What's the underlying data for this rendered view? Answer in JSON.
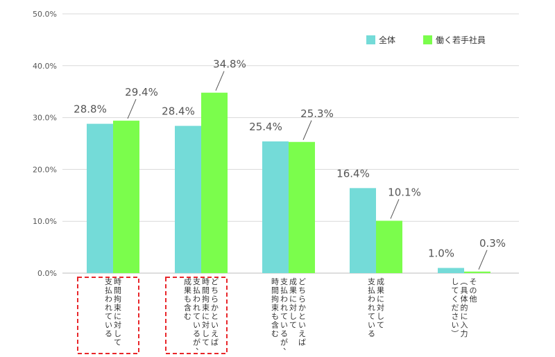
{
  "chart_data": {
    "type": "bar",
    "ylim": [
      0,
      50
    ],
    "yticks": [
      "0.0%",
      "10.0%",
      "20.0%",
      "30.0%",
      "40.0%",
      "50.0%"
    ],
    "grid": true,
    "legend_position": "top-right",
    "categories": [
      [
        "時間拘束に対して",
        "支払われている"
      ],
      [
        "どちらかといえば",
        "時間拘束に対して",
        "支払われているが、",
        "成果も含む"
      ],
      [
        "どちらかといえば",
        "成果に対して",
        "支払われているが、",
        "時間拘束も含む"
      ],
      [
        "成果に対して",
        "支払われている"
      ],
      [
        "その他",
        "（具体的に入力",
        "してください）"
      ]
    ],
    "series": [
      {
        "name": "全体",
        "color": "#74dbd8",
        "values": [
          28.8,
          28.4,
          25.4,
          16.4,
          1.0
        ]
      },
      {
        "name": "働く若手社員",
        "color": "#7bfd4c",
        "values": [
          29.4,
          34.8,
          25.3,
          10.1,
          0.3
        ]
      }
    ],
    "value_labels": [
      [
        "28.8%",
        "28.4%",
        "25.4%",
        "16.4%",
        "1.0%"
      ],
      [
        "29.4%",
        "34.8%",
        "25.3%",
        "10.1%",
        "0.3%"
      ]
    ],
    "highlighted_categories": [
      0,
      1
    ],
    "highlight_color": "#e8262a"
  }
}
